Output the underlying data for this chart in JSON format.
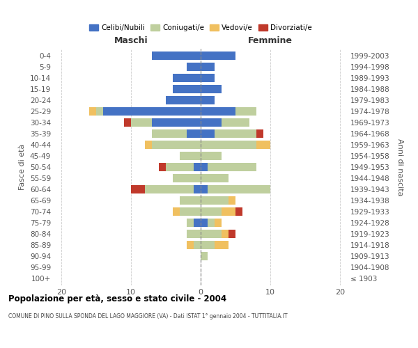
{
  "age_groups": [
    "100+",
    "95-99",
    "90-94",
    "85-89",
    "80-84",
    "75-79",
    "70-74",
    "65-69",
    "60-64",
    "55-59",
    "50-54",
    "45-49",
    "40-44",
    "35-39",
    "30-34",
    "25-29",
    "20-24",
    "15-19",
    "10-14",
    "5-9",
    "0-4"
  ],
  "birth_years": [
    "≤ 1903",
    "1904-1908",
    "1909-1913",
    "1914-1918",
    "1919-1923",
    "1924-1928",
    "1929-1933",
    "1934-1938",
    "1939-1943",
    "1944-1948",
    "1949-1953",
    "1954-1958",
    "1959-1963",
    "1964-1968",
    "1969-1973",
    "1974-1978",
    "1979-1983",
    "1984-1988",
    "1989-1993",
    "1994-1998",
    "1999-2003"
  ],
  "maschi": {
    "celibi": [
      0,
      0,
      0,
      0,
      0,
      1,
      0,
      0,
      1,
      0,
      1,
      0,
      0,
      2,
      7,
      14,
      5,
      4,
      4,
      2,
      7
    ],
    "coniugati": [
      0,
      0,
      0,
      1,
      2,
      1,
      3,
      3,
      7,
      4,
      4,
      3,
      7,
      5,
      3,
      1,
      0,
      0,
      0,
      0,
      0
    ],
    "vedovi": [
      0,
      0,
      0,
      1,
      0,
      0,
      1,
      0,
      0,
      0,
      0,
      0,
      1,
      0,
      0,
      1,
      0,
      0,
      0,
      0,
      0
    ],
    "divorziati": [
      0,
      0,
      0,
      0,
      0,
      0,
      0,
      0,
      2,
      0,
      1,
      0,
      0,
      0,
      1,
      0,
      0,
      0,
      0,
      0,
      0
    ]
  },
  "femmine": {
    "nubili": [
      0,
      0,
      0,
      0,
      0,
      1,
      0,
      0,
      1,
      0,
      1,
      0,
      0,
      2,
      3,
      5,
      2,
      3,
      2,
      2,
      5
    ],
    "coniugate": [
      0,
      0,
      1,
      2,
      3,
      1,
      3,
      4,
      9,
      4,
      7,
      3,
      8,
      6,
      4,
      3,
      0,
      0,
      0,
      0,
      0
    ],
    "vedove": [
      0,
      0,
      0,
      2,
      1,
      1,
      2,
      1,
      0,
      0,
      0,
      0,
      2,
      0,
      0,
      0,
      0,
      0,
      0,
      0,
      0
    ],
    "divorziate": [
      0,
      0,
      0,
      0,
      1,
      0,
      1,
      0,
      0,
      0,
      0,
      0,
      0,
      1,
      0,
      0,
      0,
      0,
      0,
      0,
      0
    ]
  },
  "colors": {
    "celibi_nubili": "#4472C4",
    "coniugati": "#BFCF9E",
    "vedovi": "#F0C060",
    "divorziati": "#C0392B"
  },
  "xlim": [
    -21,
    21
  ],
  "xticks": [
    -20,
    -10,
    0,
    10,
    20
  ],
  "xticklabels": [
    "20",
    "10",
    "0",
    "10",
    "20"
  ],
  "title": "Popolazione per età, sesso e stato civile - 2004",
  "subtitle": "COMUNE DI PINO SULLA SPONDA DEL LAGO MAGGIORE (VA) - Dati ISTAT 1° gennaio 2004 - TUTTITALIA.IT",
  "ylabel_left": "Fasce di età",
  "ylabel_right": "Anni di nascita",
  "label_maschi": "Maschi",
  "label_femmine": "Femmine",
  "legend_labels": [
    "Celibi/Nubili",
    "Coniugati/e",
    "Vedovi/e",
    "Divorziati/e"
  ],
  "bar_height": 0.75,
  "fig_width": 6.0,
  "fig_height": 5.0,
  "dpi": 100
}
